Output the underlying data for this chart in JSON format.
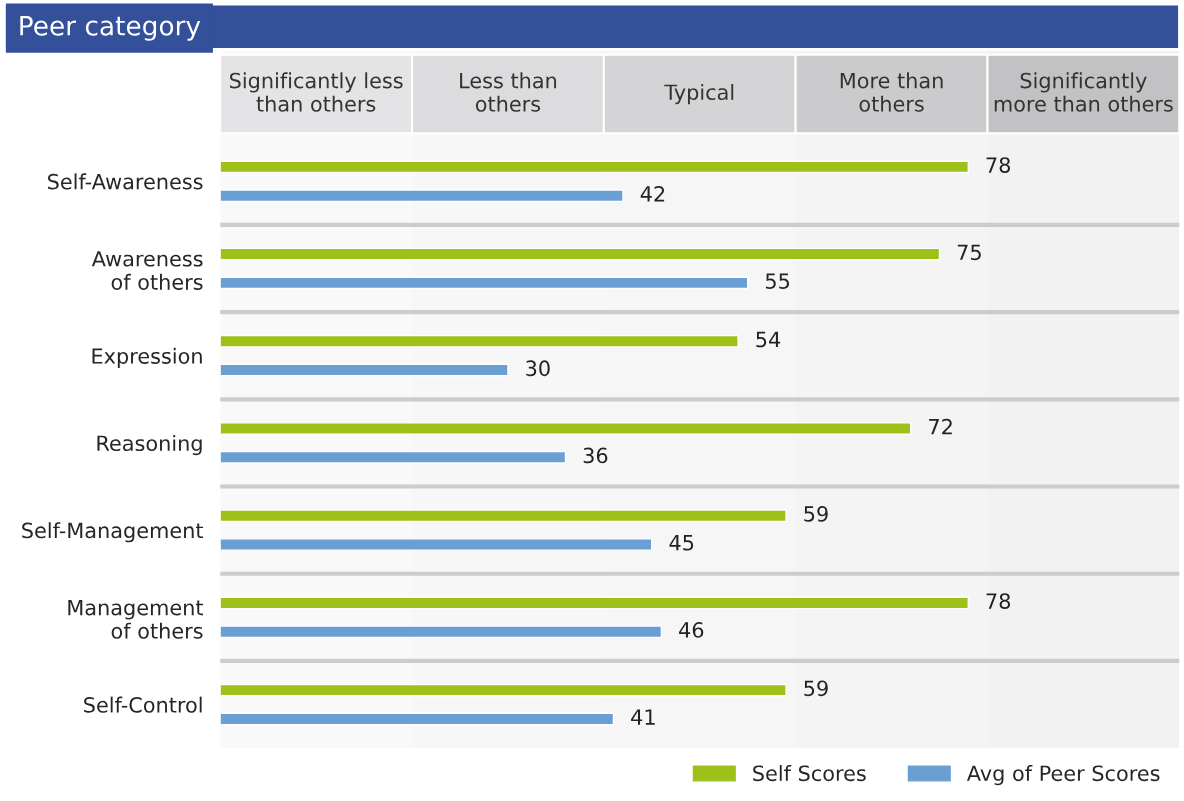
{
  "chart_data": {
    "type": "bar",
    "orientation": "horizontal",
    "title": "Peer category",
    "categories": [
      "Self-Awareness",
      "Awareness\nof others",
      "Expression",
      "Reasoning",
      "Self-Management",
      "Management\nof others",
      "Self-Control"
    ],
    "series": [
      {
        "name": "Self Scores",
        "color": "#9dc118",
        "values": [
          78,
          75,
          54,
          72,
          59,
          78,
          59
        ]
      },
      {
        "name": "Avg of Peer Scores",
        "color": "#6a9fd4",
        "values": [
          42,
          55,
          30,
          36,
          45,
          46,
          41
        ]
      }
    ],
    "xlim": [
      0,
      100
    ],
    "tick_labels": "y",
    "data_labels": true,
    "legend": "bottom right",
    "grid": false,
    "bands": [
      {
        "axis": "x",
        "from": 0,
        "to": 20,
        "label": "Significantly less\nthan others",
        "color": "#e4e4e6"
      },
      {
        "axis": "x",
        "from": 20,
        "to": 40,
        "label": "Less than\nothers",
        "color": "#dcdcde"
      },
      {
        "axis": "x",
        "from": 40,
        "to": 60,
        "label": "Typical",
        "color": "#d4d4d6"
      },
      {
        "axis": "x",
        "from": 60,
        "to": 80,
        "label": "More than\nothers",
        "color": "#cbcbcd"
      },
      {
        "axis": "x",
        "from": 80,
        "to": 100,
        "label": "Significantly\nmore than others",
        "color": "#c2c2c4"
      }
    ]
  }
}
